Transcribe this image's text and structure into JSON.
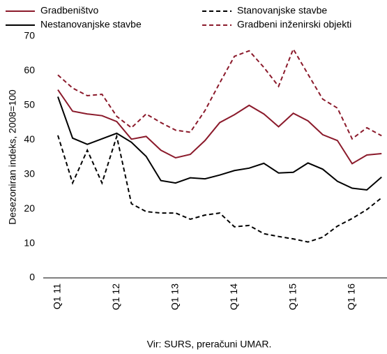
{
  "chart_data": {
    "type": "line",
    "y_label": "Desezoniran indeks, 2008=100",
    "source": "Vir: SURS, preračuni UMAR.",
    "categories": [
      "Q1 11",
      null,
      null,
      null,
      "Q1 12",
      null,
      null,
      null,
      "Q1 13",
      null,
      null,
      null,
      "Q1 14",
      null,
      null,
      null,
      "Q1 15",
      null,
      null,
      null,
      "Q1 16",
      null,
      null
    ],
    "series": [
      {
        "name": "Gradbeništvo",
        "color": "#8b1a2b",
        "dash": false,
        "values": [
          54.5,
          48.3,
          47.5,
          47,
          45.3,
          40.2,
          41,
          37,
          34.8,
          35.8,
          39.8,
          45,
          47.3,
          50,
          47.5,
          43.8,
          47.7,
          45.5,
          41.5,
          39.8,
          33.1,
          35.6,
          36
        ]
      },
      {
        "name": "Stanovanjske stavbe",
        "color": "#000000",
        "dash": true,
        "values": [
          41.3,
          27.5,
          37,
          27.5,
          41,
          21.5,
          19.2,
          18.8,
          18.8,
          17,
          18.2,
          18.8,
          14.8,
          15.2,
          12.8,
          12,
          11.3,
          10.4,
          11.8,
          15,
          17.2,
          19.8,
          23.2
        ]
      },
      {
        "name": "Nestanovanjske stavbe",
        "color": "#000000",
        "dash": false,
        "values": [
          52.5,
          40.5,
          38.7,
          40.3,
          41.9,
          39.3,
          35.2,
          28.2,
          27.5,
          29,
          28.7,
          29.8,
          31.1,
          31.8,
          33.2,
          30.4,
          30.6,
          33.3,
          31.5,
          28,
          26,
          25.5,
          29.2
        ]
      },
      {
        "name": "Gradbeni inženirski objekti",
        "color": "#8b1a2b",
        "dash": true,
        "values": [
          58.8,
          55,
          52.8,
          53.2,
          46.8,
          43.5,
          47.5,
          45,
          42.8,
          42.2,
          48.5,
          56.5,
          64.2,
          65.8,
          61,
          55.5,
          66.3,
          59,
          51.8,
          49.2,
          40.3,
          43.5,
          41.2
        ]
      }
    ],
    "ylim": [
      0,
      70
    ],
    "yticks": [
      0,
      10,
      20,
      30,
      40,
      50,
      60,
      70
    ],
    "grid": false
  }
}
